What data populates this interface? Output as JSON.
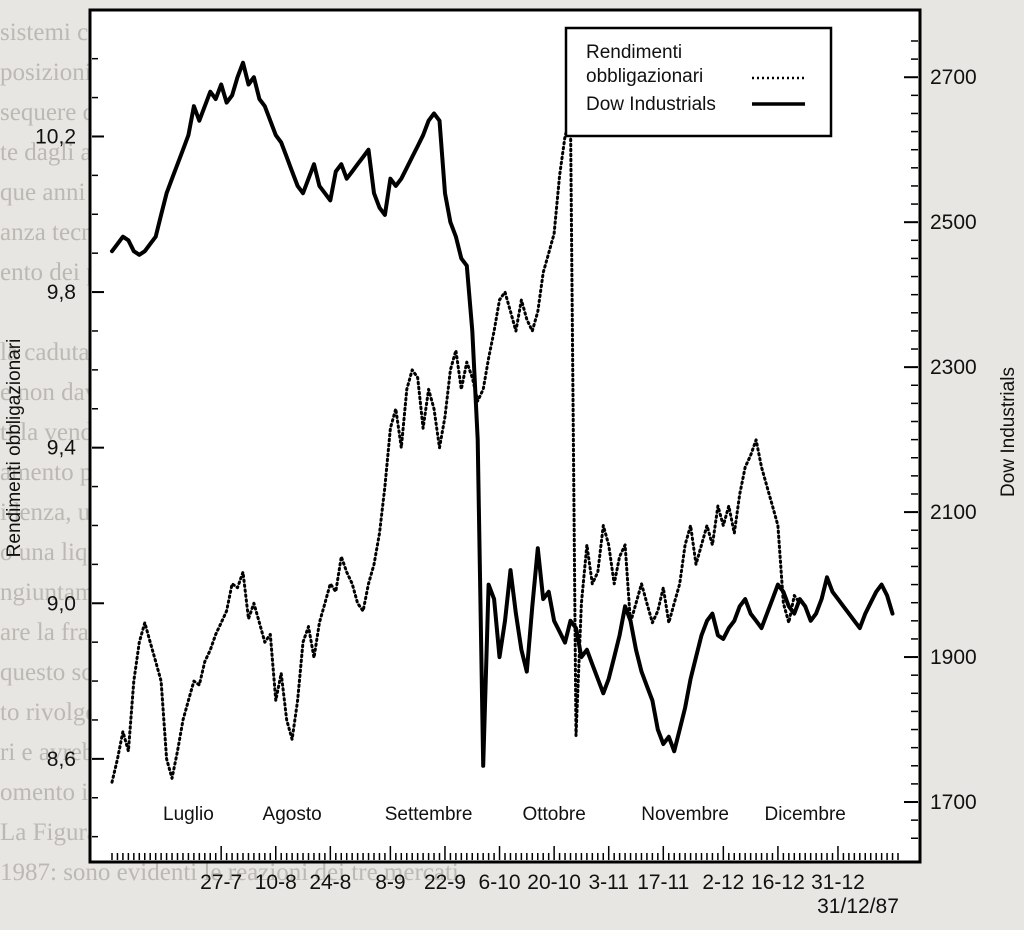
{
  "chart_data": {
    "type": "line",
    "title": "",
    "ylabel_left": "Rendimenti obbligazionari",
    "ylabel_right": "Dow Industrials",
    "ylim_left": [
      8.34,
      10.52
    ],
    "ylim_right": [
      1620,
      2790
    ],
    "yticks_left": [
      "8,6",
      "9,0",
      "9,4",
      "9,8",
      "10,2"
    ],
    "yticks_left_values": [
      8.6,
      9.0,
      9.4,
      9.8,
      10.2
    ],
    "yticks_right": [
      "1700",
      "1900",
      "2100",
      "2300",
      "2500",
      "2700"
    ],
    "yticks_right_values": [
      1700,
      1900,
      2100,
      2300,
      2500,
      2700
    ],
    "months": [
      "Luglio",
      "Agosto",
      "Settembre",
      "Ottobre",
      "Novembre",
      "Dicembre"
    ],
    "months_pos": [
      14,
      33,
      58,
      81,
      105,
      127
    ],
    "date_ticks": [
      "27-7",
      "10-8",
      "24-8",
      "8-9",
      "22-9",
      "6-10",
      "20-10",
      "3-11",
      "17-11",
      "2-12",
      "16-12",
      "31-12"
    ],
    "date_ticks_pos": [
      20,
      30,
      40,
      51,
      61,
      71,
      81,
      91,
      101,
      112,
      122,
      133
    ],
    "end_label": "31/12/87",
    "x_range": [
      0,
      144
    ],
    "legend": {
      "position": "top-right",
      "entries": [
        "Rendimenti obbligazionari",
        "Dow Industrials"
      ]
    },
    "series": [
      {
        "name": "Rendimenti obbligazionari",
        "axis": "left",
        "style": "dotted",
        "x": [
          0,
          1,
          2,
          3,
          4,
          5,
          6,
          7,
          8,
          9,
          10,
          11,
          12,
          13,
          14,
          15,
          16,
          17,
          18,
          19,
          20,
          21,
          22,
          23,
          24,
          25,
          26,
          27,
          28,
          29,
          30,
          31,
          32,
          33,
          34,
          35,
          36,
          37,
          38,
          39,
          40,
          41,
          42,
          43,
          44,
          45,
          46,
          47,
          48,
          49,
          50,
          51,
          52,
          53,
          54,
          55,
          56,
          57,
          58,
          59,
          60,
          61,
          62,
          63,
          64,
          65,
          66,
          67,
          68,
          69,
          70,
          71,
          72,
          73,
          74,
          75,
          76,
          77,
          78,
          79,
          80,
          81,
          82,
          83,
          84,
          85,
          86,
          87,
          88,
          89,
          90,
          91,
          92,
          93,
          94,
          95,
          96,
          97,
          98,
          99,
          100,
          101,
          102,
          103,
          104,
          105,
          106,
          107,
          108,
          109,
          110,
          111,
          112,
          113,
          114,
          115,
          116,
          117,
          118,
          119,
          120,
          121,
          122,
          123,
          124,
          125,
          126
        ],
        "values": [
          8.54,
          8.6,
          8.67,
          8.62,
          8.8,
          8.9,
          8.95,
          8.9,
          8.85,
          8.8,
          8.6,
          8.55,
          8.62,
          8.7,
          8.75,
          8.8,
          8.79,
          8.85,
          8.88,
          8.92,
          8.95,
          8.98,
          9.05,
          9.04,
          9.08,
          8.96,
          9.0,
          8.95,
          8.9,
          8.92,
          8.75,
          8.82,
          8.7,
          8.65,
          8.75,
          8.9,
          8.94,
          8.86,
          8.95,
          9.0,
          9.05,
          9.03,
          9.12,
          9.08,
          9.05,
          9.0,
          8.98,
          9.05,
          9.1,
          9.18,
          9.3,
          9.45,
          9.5,
          9.4,
          9.55,
          9.6,
          9.58,
          9.45,
          9.55,
          9.5,
          9.4,
          9.48,
          9.6,
          9.65,
          9.55,
          9.62,
          9.58,
          9.52,
          9.55,
          9.63,
          9.7,
          9.78,
          9.8,
          9.75,
          9.7,
          9.78,
          9.73,
          9.7,
          9.75,
          9.85,
          9.9,
          9.95,
          10.1,
          10.2,
          10.25,
          8.66,
          9.0,
          9.15,
          9.05,
          9.08,
          9.2,
          9.15,
          9.05,
          9.12,
          9.15,
          8.95,
          9.0,
          9.05,
          9.0,
          8.95,
          8.98,
          9.04,
          8.95,
          9.0,
          9.05,
          9.15,
          9.2,
          9.1,
          9.15,
          9.2,
          9.15,
          9.25,
          9.2,
          9.25,
          9.18,
          9.28,
          9.35,
          9.38,
          9.42,
          9.35,
          9.3,
          9.25,
          9.2,
          9.0,
          8.95,
          9.02,
          9.0
        ]
      },
      {
        "name": "Dow Industrials",
        "axis": "right",
        "style": "solid",
        "x": [
          0,
          1,
          2,
          3,
          4,
          5,
          6,
          7,
          8,
          9,
          10,
          11,
          12,
          13,
          14,
          15,
          16,
          17,
          18,
          19,
          20,
          21,
          22,
          23,
          24,
          25,
          26,
          27,
          28,
          29,
          30,
          31,
          32,
          33,
          34,
          35,
          36,
          37,
          38,
          39,
          40,
          41,
          42,
          43,
          44,
          45,
          46,
          47,
          48,
          49,
          50,
          51,
          52,
          53,
          54,
          55,
          56,
          57,
          58,
          59,
          60,
          61,
          62,
          63,
          64,
          65,
          66,
          67,
          68,
          69,
          70,
          71,
          72,
          73,
          74,
          75,
          76,
          77,
          78,
          79,
          80,
          81,
          82,
          83,
          84,
          85,
          86,
          87,
          88,
          89,
          90,
          91,
          92,
          93,
          94,
          95,
          96,
          97,
          98,
          99,
          100,
          101,
          102,
          103,
          104,
          105,
          106,
          107,
          108,
          109,
          110,
          111,
          112,
          113,
          114,
          115,
          116,
          117,
          118,
          119,
          120,
          121,
          122,
          123,
          124,
          125,
          126,
          127,
          128,
          129,
          130,
          131,
          132,
          133,
          134,
          135,
          136,
          137,
          138,
          139,
          140,
          141,
          142,
          143
        ],
        "values": [
          2460,
          2470,
          2480,
          2475,
          2460,
          2455,
          2460,
          2470,
          2480,
          2510,
          2540,
          2560,
          2580,
          2600,
          2620,
          2660,
          2640,
          2660,
          2680,
          2670,
          2690,
          2665,
          2675,
          2700,
          2720,
          2690,
          2700,
          2670,
          2660,
          2640,
          2620,
          2610,
          2590,
          2570,
          2550,
          2540,
          2560,
          2580,
          2550,
          2540,
          2530,
          2570,
          2580,
          2560,
          2570,
          2580,
          2590,
          2600,
          2540,
          2520,
          2510,
          2560,
          2550,
          2560,
          2575,
          2590,
          2605,
          2620,
          2640,
          2650,
          2640,
          2540,
          2500,
          2480,
          2450,
          2440,
          2350,
          2200,
          1750,
          2000,
          1980,
          1900,
          1950,
          2020,
          1960,
          1910,
          1880,
          1970,
          2050,
          1980,
          1990,
          1950,
          1935,
          1920,
          1950,
          1940,
          1900,
          1910,
          1890,
          1870,
          1850,
          1870,
          1900,
          1930,
          1970,
          1950,
          1910,
          1880,
          1860,
          1840,
          1800,
          1780,
          1790,
          1770,
          1800,
          1830,
          1870,
          1900,
          1930,
          1950,
          1960,
          1930,
          1925,
          1940,
          1950,
          1970,
          1980,
          1960,
          1950,
          1940,
          1960,
          1980,
          2000,
          1990,
          1970,
          1960,
          1980,
          1970,
          1950,
          1960,
          1980,
          2010,
          1990,
          1980,
          1970,
          1960,
          1950,
          1940,
          1960,
          1975,
          1990,
          2000,
          1985,
          1960
        ]
      }
    ]
  }
}
